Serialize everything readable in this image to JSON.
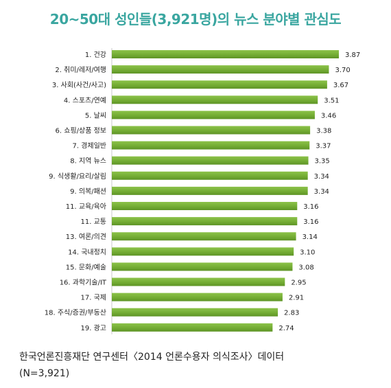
{
  "title": "20~50대 성인들(3,921명)의 뉴스 분야별 관심도",
  "source": {
    "line1": "한국언론진흥재단 연구센터〈2014 언론수용자 의식조사〉데이터",
    "line2": "(N=3,921)"
  },
  "colors": {
    "title": "#3aa6a0",
    "bar": "#7cb23b",
    "bar_dark": "#5e9a2a",
    "grid": "#c8c8c8"
  },
  "chart_data": {
    "type": "bar",
    "orientation": "horizontal",
    "title": "20~50대 성인들(3,921명)의 뉴스 분야별 관심도",
    "categories": [
      "1. 건강",
      "2. 취미/레저/여행",
      "3. 사회(사건/사고)",
      "4. 스포츠/연예",
      "5. 날씨",
      "6. 쇼핑/상품 정보",
      "7. 경제일반",
      "8. 지역 뉴스",
      "9. 식생활/요리/살림",
      "9. 의복/패션",
      "11. 교육/육아",
      "11. 교통",
      "13. 여론/의견",
      "14. 국내정치",
      "15. 문화/예술",
      "16. 과학기술/IT",
      "17. 국제",
      "18. 주식/증권/부동산",
      "19. 광고"
    ],
    "values": [
      3.87,
      3.7,
      3.67,
      3.51,
      3.46,
      3.38,
      3.37,
      3.35,
      3.34,
      3.34,
      3.16,
      3.16,
      3.14,
      3.1,
      3.08,
      2.95,
      2.91,
      2.83,
      2.74
    ],
    "value_labels": [
      "3.87",
      "3.70",
      "3.67",
      "3.51",
      "3.46",
      "3.38",
      "3.37",
      "3.35",
      "3.34",
      "3.34",
      "3.16",
      "3.16",
      "3.14",
      "3.10",
      "3.08",
      "2.95",
      "2.91",
      "2.83",
      "2.74"
    ],
    "xlim": [
      0,
      3.87
    ],
    "grid": false,
    "legend": "none"
  }
}
